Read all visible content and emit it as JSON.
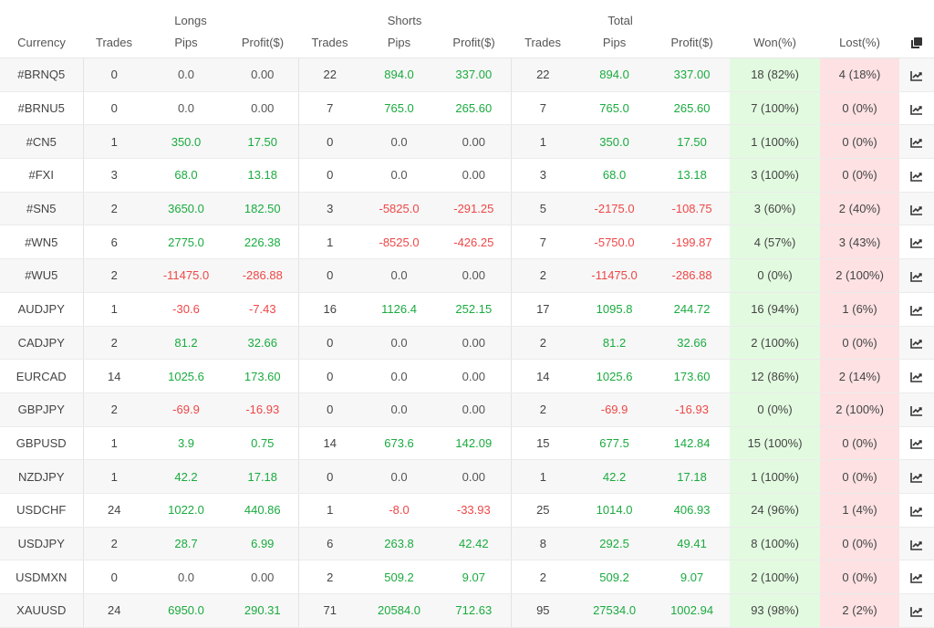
{
  "header": {
    "groups": {
      "longs": "Longs",
      "shorts": "Shorts",
      "total": "Total"
    },
    "columns": {
      "currency": "Currency",
      "long_trades": "Trades",
      "long_pips": "Pips",
      "long_profit": "Profit($)",
      "short_trades": "Trades",
      "short_pips": "Pips",
      "short_profit": "Profit($)",
      "total_trades": "Trades",
      "total_pips": "Pips",
      "total_profit": "Profit($)",
      "won": "Won(%)",
      "lost": "Lost(%)"
    },
    "copy_icon": "copy-icon"
  },
  "colors": {
    "positive": "#1aab3f",
    "negative": "#ef4747",
    "won_bg": "#e2fbe0",
    "lost_bg": "#fde1e3"
  },
  "rows": [
    {
      "currency": "#BRNQ5",
      "lt": "0",
      "lp": "0.0",
      "lpr": "0.00",
      "st": "22",
      "sp": "894.0",
      "spr": "337.00",
      "tt": "22",
      "tp": "894.0",
      "tpr": "337.00",
      "won": "18 (82%)",
      "lost": "4 (18%)"
    },
    {
      "currency": "#BRNU5",
      "lt": "0",
      "lp": "0.0",
      "lpr": "0.00",
      "st": "7",
      "sp": "765.0",
      "spr": "265.60",
      "tt": "7",
      "tp": "765.0",
      "tpr": "265.60",
      "won": "7 (100%)",
      "lost": "0 (0%)"
    },
    {
      "currency": "#CN5",
      "lt": "1",
      "lp": "350.0",
      "lpr": "17.50",
      "st": "0",
      "sp": "0.0",
      "spr": "0.00",
      "tt": "1",
      "tp": "350.0",
      "tpr": "17.50",
      "won": "1 (100%)",
      "lost": "0 (0%)"
    },
    {
      "currency": "#FXI",
      "lt": "3",
      "lp": "68.0",
      "lpr": "13.18",
      "st": "0",
      "sp": "0.0",
      "spr": "0.00",
      "tt": "3",
      "tp": "68.0",
      "tpr": "13.18",
      "won": "3 (100%)",
      "lost": "0 (0%)"
    },
    {
      "currency": "#SN5",
      "lt": "2",
      "lp": "3650.0",
      "lpr": "182.50",
      "st": "3",
      "sp": "-5825.0",
      "spr": "-291.25",
      "tt": "5",
      "tp": "-2175.0",
      "tpr": "-108.75",
      "won": "3 (60%)",
      "lost": "2 (40%)"
    },
    {
      "currency": "#WN5",
      "lt": "6",
      "lp": "2775.0",
      "lpr": "226.38",
      "st": "1",
      "sp": "-8525.0",
      "spr": "-426.25",
      "tt": "7",
      "tp": "-5750.0",
      "tpr": "-199.87",
      "won": "4 (57%)",
      "lost": "3 (43%)"
    },
    {
      "currency": "#WU5",
      "lt": "2",
      "lp": "-11475.0",
      "lpr": "-286.88",
      "st": "0",
      "sp": "0.0",
      "spr": "0.00",
      "tt": "2",
      "tp": "-11475.0",
      "tpr": "-286.88",
      "won": "0 (0%)",
      "lost": "2 (100%)"
    },
    {
      "currency": "AUDJPY",
      "lt": "1",
      "lp": "-30.6",
      "lpr": "-7.43",
      "st": "16",
      "sp": "1126.4",
      "spr": "252.15",
      "tt": "17",
      "tp": "1095.8",
      "tpr": "244.72",
      "won": "16 (94%)",
      "lost": "1 (6%)"
    },
    {
      "currency": "CADJPY",
      "lt": "2",
      "lp": "81.2",
      "lpr": "32.66",
      "st": "0",
      "sp": "0.0",
      "spr": "0.00",
      "tt": "2",
      "tp": "81.2",
      "tpr": "32.66",
      "won": "2 (100%)",
      "lost": "0 (0%)"
    },
    {
      "currency": "EURCAD",
      "lt": "14",
      "lp": "1025.6",
      "lpr": "173.60",
      "st": "0",
      "sp": "0.0",
      "spr": "0.00",
      "tt": "14",
      "tp": "1025.6",
      "tpr": "173.60",
      "won": "12 (86%)",
      "lost": "2 (14%)"
    },
    {
      "currency": "GBPJPY",
      "lt": "2",
      "lp": "-69.9",
      "lpr": "-16.93",
      "st": "0",
      "sp": "0.0",
      "spr": "0.00",
      "tt": "2",
      "tp": "-69.9",
      "tpr": "-16.93",
      "won": "0 (0%)",
      "lost": "2 (100%)"
    },
    {
      "currency": "GBPUSD",
      "lt": "1",
      "lp": "3.9",
      "lpr": "0.75",
      "st": "14",
      "sp": "673.6",
      "spr": "142.09",
      "tt": "15",
      "tp": "677.5",
      "tpr": "142.84",
      "won": "15 (100%)",
      "lost": "0 (0%)"
    },
    {
      "currency": "NZDJPY",
      "lt": "1",
      "lp": "42.2",
      "lpr": "17.18",
      "st": "0",
      "sp": "0.0",
      "spr": "0.00",
      "tt": "1",
      "tp": "42.2",
      "tpr": "17.18",
      "won": "1 (100%)",
      "lost": "0 (0%)"
    },
    {
      "currency": "USDCHF",
      "lt": "24",
      "lp": "1022.0",
      "lpr": "440.86",
      "st": "1",
      "sp": "-8.0",
      "spr": "-33.93",
      "tt": "25",
      "tp": "1014.0",
      "tpr": "406.93",
      "won": "24 (96%)",
      "lost": "1 (4%)"
    },
    {
      "currency": "USDJPY",
      "lt": "2",
      "lp": "28.7",
      "lpr": "6.99",
      "st": "6",
      "sp": "263.8",
      "spr": "42.42",
      "tt": "8",
      "tp": "292.5",
      "tpr": "49.41",
      "won": "8 (100%)",
      "lost": "0 (0%)"
    },
    {
      "currency": "USDMXN",
      "lt": "0",
      "lp": "0.0",
      "lpr": "0.00",
      "st": "2",
      "sp": "509.2",
      "spr": "9.07",
      "tt": "2",
      "tp": "509.2",
      "tpr": "9.07",
      "won": "2 (100%)",
      "lost": "0 (0%)"
    },
    {
      "currency": "XAUUSD",
      "lt": "24",
      "lp": "6950.0",
      "lpr": "290.31",
      "st": "71",
      "sp": "20584.0",
      "spr": "712.63",
      "tt": "95",
      "tp": "27534.0",
      "tpr": "1002.94",
      "won": "93 (98%)",
      "lost": "2 (2%)"
    }
  ],
  "row_action_icon": "chart-line-icon"
}
